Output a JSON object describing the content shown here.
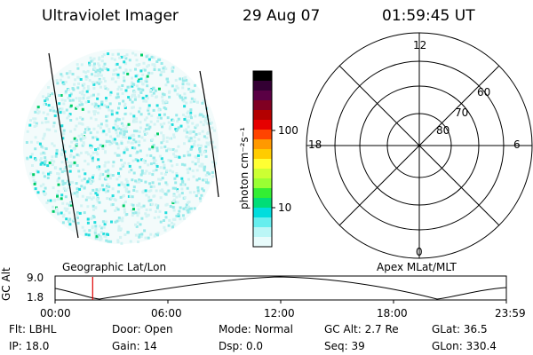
{
  "header": {
    "title": "Ultraviolet Imager",
    "date": "29 Aug 07",
    "time": "01:59:45 UT"
  },
  "colorbar": {
    "unit_label": "photon cm⁻²s⁻¹",
    "ticks": [
      "100",
      "10"
    ],
    "colors": [
      "#000000",
      "#330033",
      "#5a0044",
      "#800022",
      "#b30000",
      "#e60000",
      "#ff4400",
      "#ff9900",
      "#ffcc00",
      "#ffff33",
      "#ccff33",
      "#99ff33",
      "#33ee33",
      "#00dd77",
      "#00dddd",
      "#66eeee",
      "#bbf6f6",
      "#e8fbfb"
    ]
  },
  "polar_plot": {
    "mlt_labels": {
      "top": "12",
      "left": "18",
      "right": "6",
      "bottom": "0"
    },
    "lat_labels": [
      "60",
      "70",
      "80"
    ]
  },
  "map_labels": {
    "left": "Geographic Lat/Lon",
    "right": "Apex MLat/MLT"
  },
  "timeline": {
    "ylabel": "GC Alt",
    "yticks": [
      "9.0",
      "1.8"
    ],
    "xticks": [
      "00:00",
      "06:00",
      "12:00",
      "18:00",
      "23:59"
    ],
    "current_time_fraction": 0.0833
  },
  "info": {
    "flt": "Flt: LBHL",
    "door": "Door: Open",
    "mode": "Mode: Normal",
    "gc_alt": "GC Alt: 2.7 Re",
    "glat": "GLat:  36.5",
    "ip": "IP: 18.0",
    "gain": "Gain: 14",
    "dsp": "Dsp:    0.0",
    "seq": "Seq: 39",
    "glon": "GLon: 330.4"
  }
}
